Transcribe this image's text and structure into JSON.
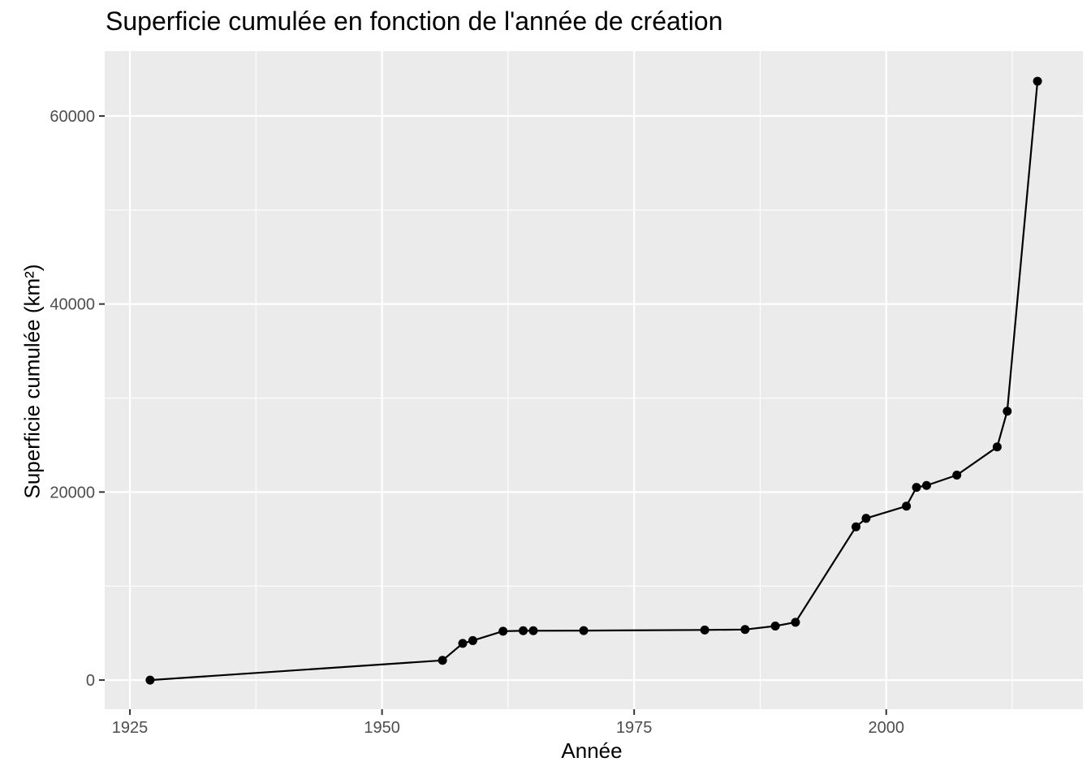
{
  "chart_data": {
    "type": "line",
    "title": "Superficie cumulée en fonction de l'année de création",
    "xlabel": "Année",
    "ylabel": "Superficie cumulée (km²)",
    "x_ticks": [
      "1925",
      "1950",
      "1975",
      "2000"
    ],
    "y_ticks": [
      "0",
      "20000",
      "40000",
      "60000"
    ],
    "xlim": [
      1922.5,
      2019.5
    ],
    "ylim": [
      -3100,
      66900
    ],
    "grid": true,
    "series": [
      {
        "x": [
          1927,
          1956,
          1958,
          1959,
          1962,
          1964,
          1965,
          1970,
          1982,
          1986,
          1989,
          1991,
          1997,
          1998,
          2002,
          2003,
          2004,
          2007,
          2011,
          2012,
          2015
        ],
        "y": [
          0,
          2100,
          3900,
          4200,
          5200,
          5250,
          5250,
          5260,
          5330,
          5380,
          5750,
          6150,
          16300,
          17200,
          18500,
          20500,
          20700,
          21800,
          24800,
          28600,
          63700
        ]
      }
    ],
    "colors": {
      "panel": "#EBEBEB",
      "grid_major": "#FFFFFF",
      "line": "#000000",
      "tick_text": "#4D4D4D",
      "tick_mark": "#333333"
    }
  }
}
